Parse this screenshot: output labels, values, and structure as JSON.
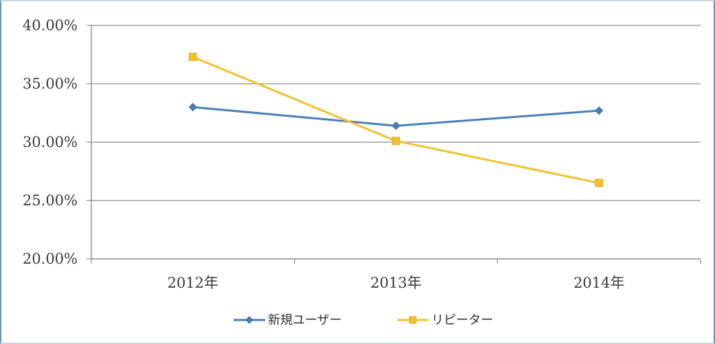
{
  "chart_data": {
    "type": "line",
    "title": "",
    "xlabel": "",
    "ylabel": "",
    "categories": [
      "2012年",
      "2013年",
      "2014年"
    ],
    "ylim": [
      0.2,
      0.4
    ],
    "y_ticks": [
      0.4,
      0.35,
      0.3,
      0.25,
      0.2
    ],
    "y_tick_labels": [
      "40.00%",
      "35.00%",
      "30.00%",
      "25.00%",
      "20.00%"
    ],
    "grid": true,
    "legend_position": "bottom",
    "series": [
      {
        "name": "新規ユーザー",
        "values": [
          0.33,
          0.314,
          0.327
        ],
        "color": "#4a7fb5",
        "marker": "diamond"
      },
      {
        "name": "リピーター",
        "values": [
          0.373,
          0.301,
          0.265
        ],
        "color": "#f2c12e",
        "marker": "square"
      }
    ]
  }
}
